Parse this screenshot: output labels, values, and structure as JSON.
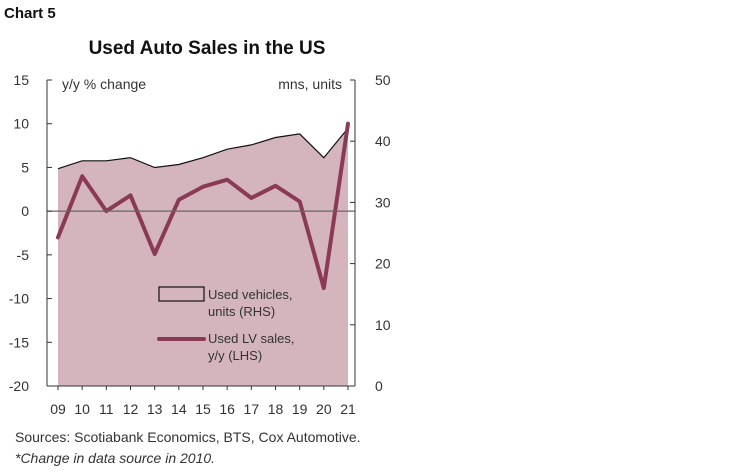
{
  "chart_label": "Chart 5",
  "source": {
    "text": "Sources: Scotiabank Economics, BTS, Cox Automotive. ",
    "note": "*Change in data source in 2010."
  },
  "chart_data": {
    "type": "area",
    "title": "Used Auto Sales in the US",
    "left_axis_unit": "y/y % change",
    "right_axis_unit": "mns, units",
    "categories": [
      "09",
      "10",
      "11",
      "12",
      "13",
      "14",
      "15",
      "16",
      "17",
      "18",
      "19",
      "20",
      "21"
    ],
    "y_left": {
      "min": -20,
      "max": 15,
      "ticks": [
        -20,
        -15,
        -10,
        -5,
        0,
        5,
        10,
        15
      ]
    },
    "y_right": {
      "min": 0,
      "max": 50,
      "ticks": [
        0,
        10,
        20,
        30,
        40,
        50
      ]
    },
    "series": [
      {
        "name": "Used vehicles, units (RHS)",
        "legend_lines": [
          "Used vehicles,",
          "units (RHS)"
        ],
        "type": "area",
        "axis": "right",
        "color": "#d4b5bd",
        "stroke": "#111111",
        "values": [
          35.5,
          36.8,
          36.8,
          37.3,
          35.7,
          36.2,
          37.3,
          38.7,
          39.4,
          40.6,
          41.2,
          37.3,
          42.1
        ]
      },
      {
        "name": "Used LV sales, y/y (LHS)",
        "legend_lines": [
          "Used LV sales,",
          "y/y (LHS)"
        ],
        "type": "line",
        "axis": "left",
        "color": "#8b3a55",
        "values": [
          -3.0,
          4.0,
          0.0,
          1.8,
          -4.9,
          1.3,
          2.8,
          3.6,
          1.5,
          2.9,
          1.1,
          -8.8,
          10.0
        ]
      }
    ],
    "zero_line": true,
    "grid": false,
    "legend_position": "bottom-right"
  }
}
